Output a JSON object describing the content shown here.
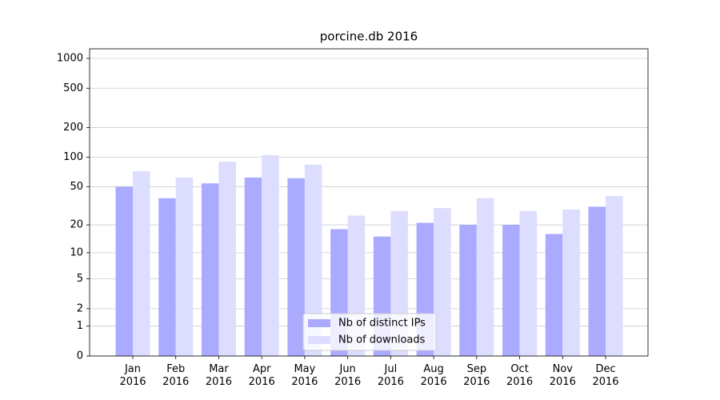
{
  "chart_data": {
    "type": "bar",
    "title": "porcine.db 2016",
    "categories": [
      "Jan 2016",
      "Feb 2016",
      "Mar 2016",
      "Apr 2016",
      "May 2016",
      "Jun 2016",
      "Jul 2016",
      "Aug 2016",
      "Sep 2016",
      "Oct 2016",
      "Nov 2016",
      "Dec 2016"
    ],
    "series": [
      {
        "name": "Nb of distinct IPs",
        "color": "#aaaaff",
        "values": [
          50,
          38,
          54,
          62,
          61,
          18,
          15,
          21,
          20,
          20,
          16,
          31
        ]
      },
      {
        "name": "Nb of downloads",
        "color": "#ddddff",
        "values": [
          72,
          62,
          90,
          105,
          84,
          25,
          28,
          30,
          38,
          28,
          29,
          40
        ]
      }
    ],
    "yscale": "log1p",
    "ylim": [
      0,
      1250
    ],
    "yticks": [
      0,
      1,
      2,
      5,
      10,
      20,
      50,
      100,
      200,
      500,
      1000
    ],
    "grid": true,
    "legend_position": "lower center"
  }
}
